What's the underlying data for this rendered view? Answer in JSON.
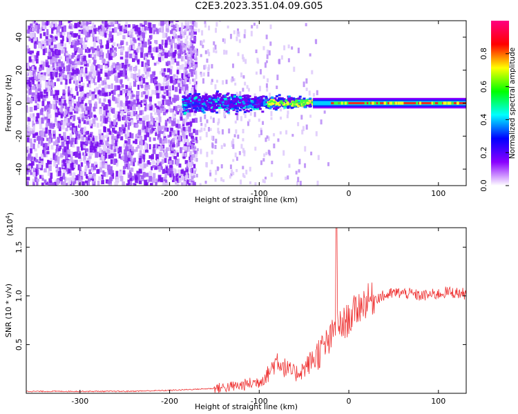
{
  "figure": {
    "title": "C2E3.2023.351.04.09.G05"
  },
  "chart_data": [
    {
      "type": "heatmap",
      "xlabel": "Height of straight line (km)",
      "ylabel": "Frequency (Hz)",
      "xlim": [
        -360,
        131
      ],
      "ylim": [
        -50,
        50
      ],
      "xticks": [
        -300,
        -200,
        -100,
        0,
        100
      ],
      "yticks": [
        -40,
        -20,
        0,
        20,
        40
      ],
      "colorbar": {
        "label": "Normalized spectral amplitude",
        "range": [
          0.0,
          1.0
        ],
        "ticks": [
          0.0,
          0.2,
          0.4,
          0.6,
          0.8
        ],
        "tick_labels": [
          "0.0",
          "0.2",
          "0.4",
          "0.6",
          "0.8"
        ],
        "colormap": [
          "#ffffff",
          "#8a00ff",
          "#0000ff",
          "#00ffff",
          "#00ff00",
          "#ffff00",
          "#ff0000",
          "#ff0080"
        ]
      },
      "features": {
        "diffuse_noise_region_x": [
          -360,
          -170
        ],
        "scattered_noise_region_x": [
          -185,
          -40
        ],
        "narrow_tone_start_x": -40,
        "narrow_tone_frequency": 0,
        "strong_tone_amplitude": 0.85
      },
      "grid": false
    },
    {
      "type": "line",
      "xlabel": "Height of straight line (km)",
      "ylabel": "SNR (10 * v/v)",
      "multiplier_label": "(x10",
      "multiplier_exp": "4",
      "multiplier_close": ")",
      "xlim": [
        -360,
        131
      ],
      "ylim": [
        0,
        1.7
      ],
      "xticks": [
        -300,
        -200,
        -100,
        0,
        100
      ],
      "yticks": [
        0.5,
        1.0,
        1.5
      ],
      "ytick_labels": [
        "0.5",
        "1.0",
        "1.5"
      ],
      "color": "#ee3030",
      "grid": false,
      "series": [
        {
          "x": [
            -360,
            -300,
            -250,
            -200,
            -150,
            -120,
            -110,
            -100,
            -90,
            -80,
            -70,
            -60,
            -50,
            -40,
            -30,
            -20,
            -15,
            -14,
            -12,
            -10,
            0,
            10,
            20,
            30,
            40,
            50,
            60,
            70,
            80,
            90,
            100,
            110,
            120,
            131
          ],
          "y": [
            0.02,
            0.02,
            0.02,
            0.03,
            0.05,
            0.08,
            0.1,
            0.12,
            0.2,
            0.35,
            0.25,
            0.2,
            0.25,
            0.35,
            0.45,
            0.55,
            0.7,
            1.7,
            0.6,
            0.68,
            0.76,
            0.88,
            0.95,
            0.98,
            1.0,
            1.03,
            1.03,
            1.02,
            1.0,
            1.01,
            1.02,
            1.04,
            1.03,
            1.02
          ]
        }
      ]
    }
  ]
}
